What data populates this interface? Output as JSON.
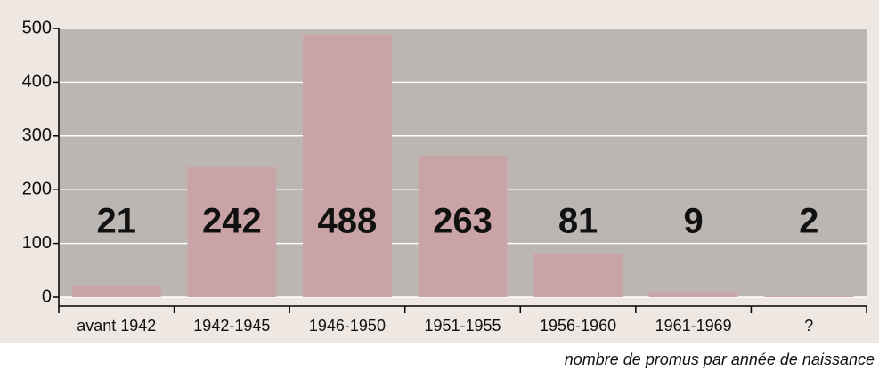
{
  "chart_data": {
    "type": "bar",
    "categories": [
      "avant 1942",
      "1942-1945",
      "1946-1950",
      "1951-1955",
      "1956-1960",
      "1961-1969",
      "?"
    ],
    "values": [
      21,
      242,
      488,
      263,
      81,
      9,
      2
    ],
    "color": "#c9a3a5",
    "ylim": [
      0,
      500
    ],
    "yticks": [
      0,
      100,
      200,
      300,
      400,
      500
    ],
    "grid": true,
    "caption": "nombre de promus par année de naissance"
  }
}
